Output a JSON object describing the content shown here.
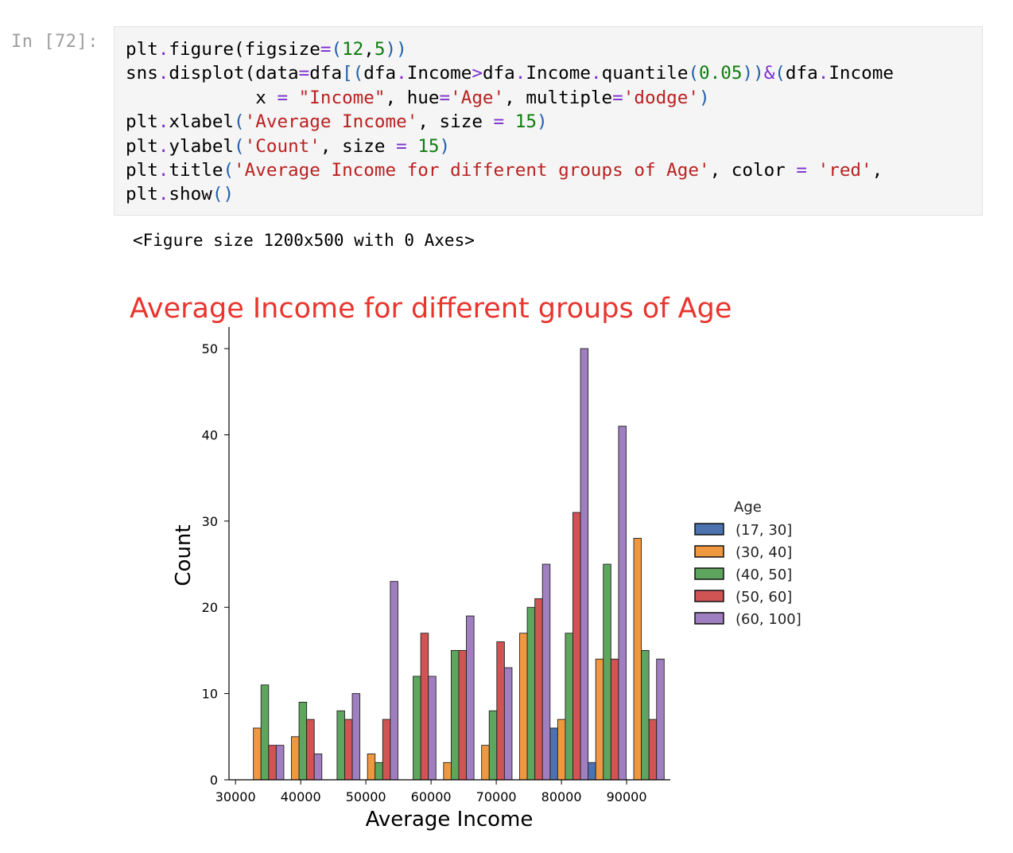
{
  "cell": {
    "prompt": "In [72]:",
    "code_lines": [
      "plt.figure(figsize=(12,5))",
      "sns.displot(data=dfa[(dfa.Income>dfa.Income.quantile(0.05))&(dfa.Income",
      "            x = \"Income\", hue='Age', multiple='dodge')",
      "plt.xlabel('Average Income', size = 15)",
      "plt.ylabel('Count', size = 15)",
      "plt.title('Average Income for different groups of Age', color = 'red',",
      "plt.show()"
    ],
    "output_text": "<Figure size 1200x500 with 0 Axes>"
  },
  "chart_data": {
    "type": "bar",
    "title": "Average Income for different groups of Age",
    "title_color": "#e8352e",
    "xlabel": "Average Income",
    "ylabel": "Count",
    "xlim": [
      29000,
      96700
    ],
    "ylim": [
      0,
      52.5
    ],
    "xticks": [
      30000,
      40000,
      50000,
      60000,
      70000,
      80000,
      90000
    ],
    "yticks": [
      0,
      10,
      20,
      30,
      40,
      50
    ],
    "bin_edges": [
      31575,
      37410,
      43245,
      49080,
      54915,
      60750,
      66585,
      72420,
      78255,
      84090,
      89925,
      95760
    ],
    "legend": {
      "title": "Age",
      "placement": "right"
    },
    "series": [
      {
        "name": "(17, 30]",
        "color": "#4c72b0",
        "values": [
          0,
          0,
          0,
          0,
          0,
          0,
          0,
          0,
          6,
          2,
          0
        ]
      },
      {
        "name": "(30, 40]",
        "color": "#f0983f",
        "values": [
          6,
          5,
          0,
          3,
          0,
          2,
          4,
          17,
          7,
          14,
          28
        ]
      },
      {
        "name": "(40, 50]",
        "color": "#5ea55e",
        "values": [
          11,
          9,
          8,
          2,
          12,
          15,
          8,
          20,
          17,
          25,
          15
        ]
      },
      {
        "name": "(50, 60]",
        "color": "#cf5453",
        "values": [
          4,
          7,
          7,
          7,
          17,
          15,
          16,
          21,
          31,
          14,
          7
        ]
      },
      {
        "name": "(60, 100]",
        "color": "#a07fc0",
        "values": [
          4,
          3,
          10,
          23,
          12,
          19,
          13,
          25,
          50,
          41,
          14
        ]
      }
    ]
  }
}
